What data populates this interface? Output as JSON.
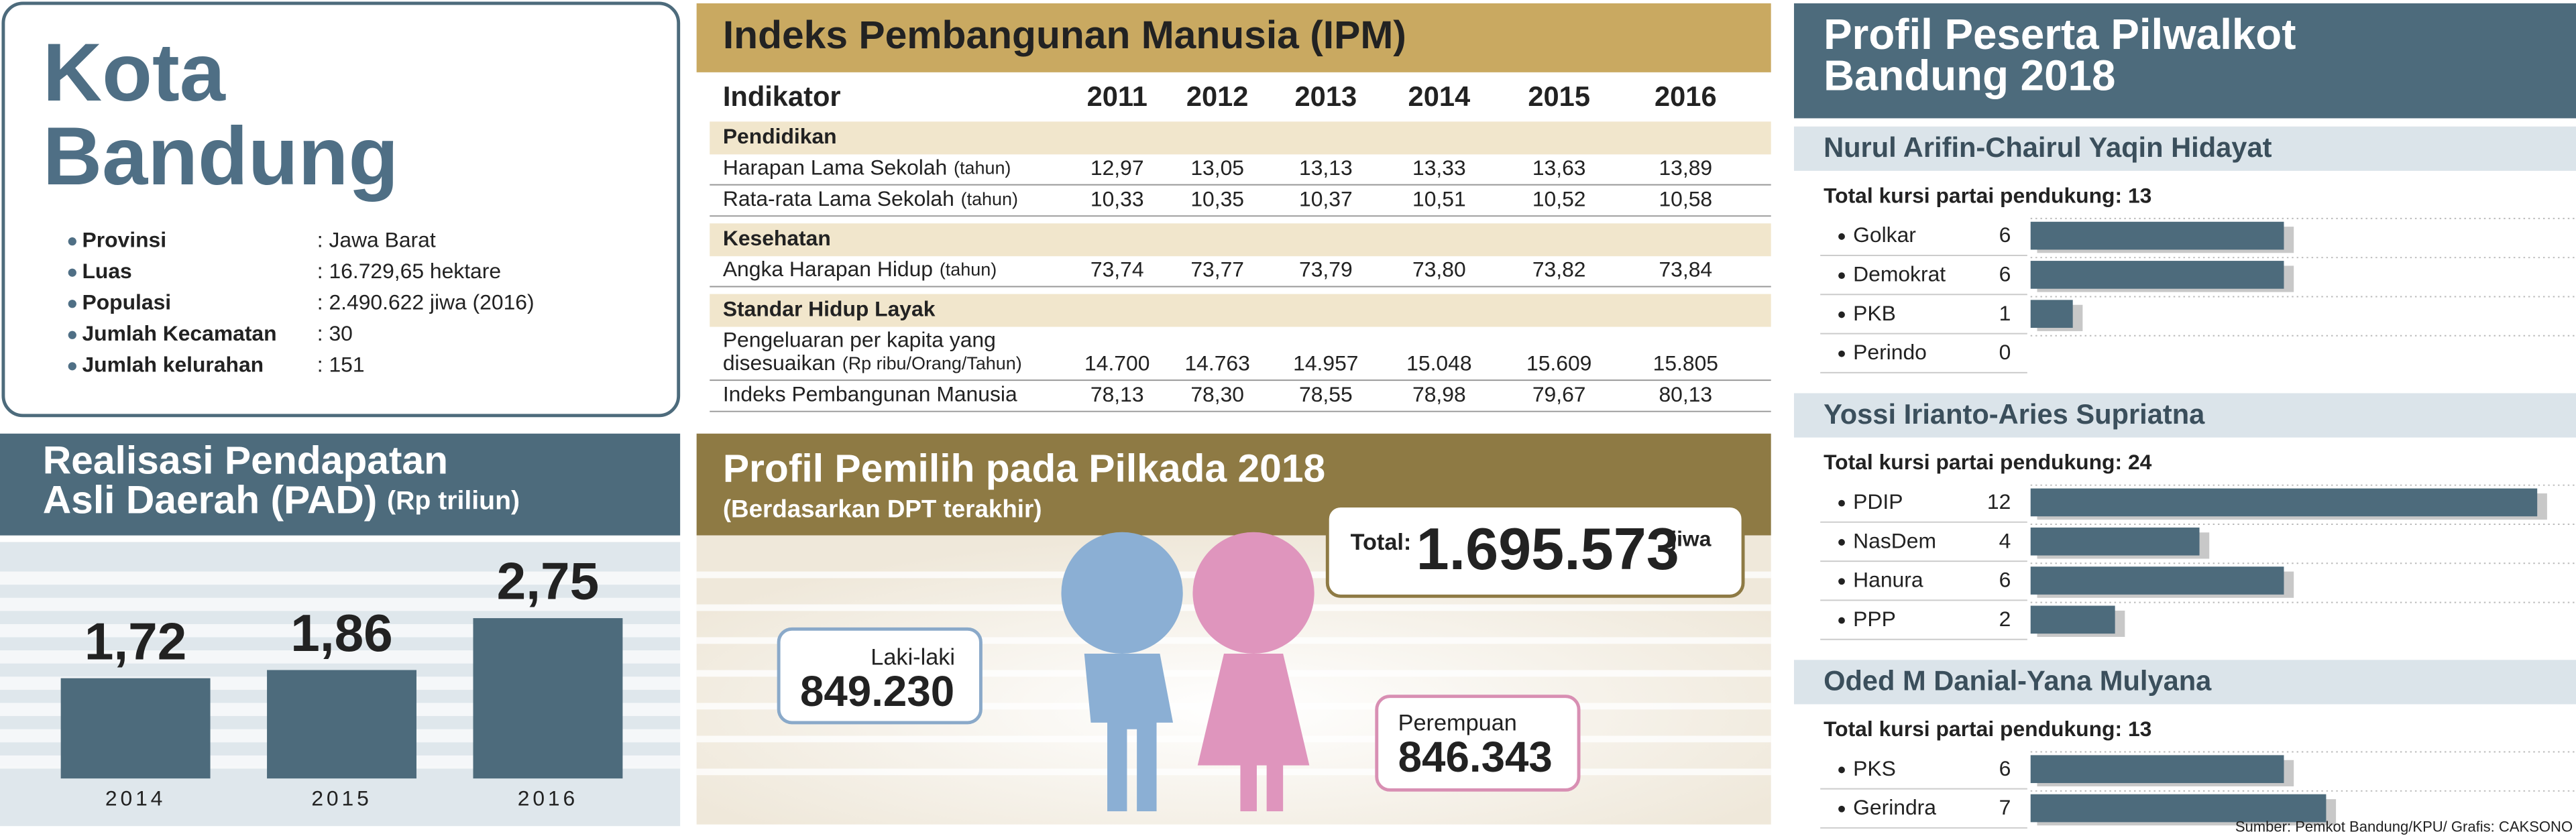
{
  "profile": {
    "title": [
      "Kota",
      "Bandung"
    ],
    "items": [
      {
        "label": "Provinsi",
        "value": ": Jawa Barat"
      },
      {
        "label": "Luas",
        "value": ": 16.729,65 hektare"
      },
      {
        "label": "Populasi",
        "value": ": 2.490.622 jiwa (2016)"
      },
      {
        "label": "Jumlah Kecamatan",
        "value": ": 30"
      },
      {
        "label": "Jumlah kelurahan",
        "value": ": 151"
      }
    ]
  },
  "pad": {
    "title": [
      "Realisasi Pendapatan",
      "Asli Daerah (PAD)"
    ],
    "unit": "(Rp triliun)",
    "categories": [
      "2014",
      "2015",
      "2016"
    ],
    "values": [
      1.72,
      1.86,
      2.75
    ],
    "value_labels": [
      "1,72",
      "1,86",
      "2,75"
    ],
    "color": "#4d6b7c"
  },
  "ipm": {
    "title": "Indeks Pembangunan Manusia (IPM)",
    "header": [
      "Indikator",
      "2011",
      "2012",
      "2013",
      "2014",
      "2015",
      "2016"
    ],
    "sections": [
      {
        "name": "Pendidikan",
        "rows": [
          {
            "label": [
              "Harapan Lama Sekolah"
            ],
            "unit": "(tahun)",
            "values": [
              "12,97",
              "13,05",
              "13,13",
              "13,33",
              "13,63",
              "13,89"
            ]
          },
          {
            "label": [
              "Rata-rata Lama Sekolah"
            ],
            "unit": "(tahun)",
            "values": [
              "10,33",
              "10,35",
              "10,37",
              "10,51",
              "10,52",
              "10,58"
            ]
          }
        ]
      },
      {
        "name": "Kesehatan",
        "rows": [
          {
            "label": [
              "Angka Harapan Hidup"
            ],
            "unit": "(tahun)",
            "values": [
              "73,74",
              "73,77",
              "73,79",
              "73,80",
              "73,82",
              "73,84"
            ]
          }
        ]
      },
      {
        "name": "Standar Hidup Layak",
        "rows": [
          {
            "label": [
              "Pengeluaran per kapita yang",
              "disesuaikan"
            ],
            "unit": "(Rp ribu/Orang/Tahun)",
            "values": [
              "14.700",
              "14.763",
              "14.957",
              "15.048",
              "15.609",
              "15.805"
            ]
          },
          {
            "label": [
              "Indeks Pembangunan Manusia"
            ],
            "values": [
              "78,13",
              "78,30",
              "78,55",
              "78,98",
              "79,67",
              "80,13"
            ]
          }
        ]
      }
    ]
  },
  "voters": {
    "title": "Profil Pemilih pada Pilkada 2018",
    "subtitle": "(Berdasarkan DPT terakhir)",
    "total_label": "Total:",
    "total": "1.695.573",
    "total_unit": "jiwa",
    "male_label": "Laki-laki",
    "male": "849.230",
    "female_label": "Perempuan",
    "female": "846.343"
  },
  "candidates": {
    "title": [
      "Profil Peserta Pilwalkot",
      "Bandung 2018"
    ],
    "color": "#4d6b7c",
    "pairs": [
      {
        "name": "Nurul Arifin-Chairul Yaqin Hidayat",
        "seats_label": "Total kursi partai pendukung: 13",
        "parties": [
          {
            "name": "Golkar",
            "seats": 6
          },
          {
            "name": "Demokrat",
            "seats": 6
          },
          {
            "name": "PKB",
            "seats": 1
          },
          {
            "name": "Perindo",
            "seats": 0
          }
        ]
      },
      {
        "name": "Yossi Irianto-Aries Supriatna",
        "seats_label": "Total kursi partai pendukung: 24",
        "parties": [
          {
            "name": "PDIP",
            "seats": 12
          },
          {
            "name": "NasDem",
            "seats": 4
          },
          {
            "name": "Hanura",
            "seats": 6
          },
          {
            "name": "PPP",
            "seats": 2
          }
        ]
      },
      {
        "name": "Oded M Danial-Yana Mulyana",
        "seats_label": "Total kursi partai pendukung: 13",
        "parties": [
          {
            "name": "PKS",
            "seats": 6
          },
          {
            "name": "Gerindra",
            "seats": 7
          }
        ]
      }
    ]
  },
  "source": "Sumber: Pemkot Bandung/KPU/ Grafis: CAKSONO"
}
